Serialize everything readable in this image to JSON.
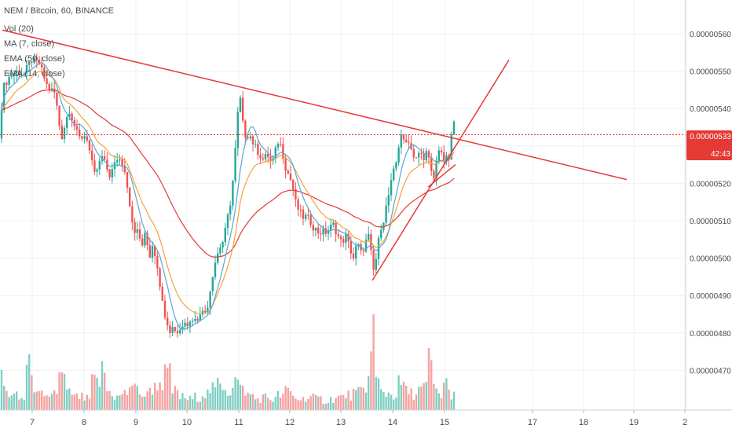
{
  "title_line": "NEM / Bitcoin, 60, BINANCE",
  "indicators": [
    "Vol (20)",
    "MA (7, close)",
    "EMA (50, close)",
    "EMA (14, close)"
  ],
  "price_badge": {
    "value": "0.00000533",
    "countdown": "42:43"
  },
  "colors": {
    "up": "#26a69a",
    "down": "#ef5350",
    "vol_up": "#7fcfc4",
    "vol_down": "#f4a3a1",
    "ma7": "#5aa7d6",
    "ema14": "#f2a33a",
    "ema50": "#e53935",
    "trendline": "#e53935",
    "price_line": "#e53935",
    "grid": "#eef0f3",
    "axis_text": "#4a4a4a"
  },
  "chart_data": {
    "type": "candlestick",
    "x_axis_ticks": [
      "7",
      "8",
      "9",
      "10",
      "11",
      "12",
      "13",
      "14",
      "15",
      "17",
      "18",
      "19",
      "2"
    ],
    "y_axis_ticks": [
      "0.00000560",
      "0.00000550",
      "0.00000540",
      "0.00000530",
      "0.00000520",
      "0.00000510",
      "0.00000500",
      "0.00000490",
      "0.00000480",
      "0.00000470"
    ],
    "ylim": [
      4.62e-06,
      5.72e-06
    ],
    "last_price": 5.33e-06,
    "close_path": [
      [
        0,
        532
      ],
      [
        3,
        545
      ],
      [
        10,
        548
      ],
      [
        20,
        550
      ],
      [
        30,
        549
      ],
      [
        40,
        553
      ],
      [
        50,
        552
      ],
      [
        60,
        546
      ],
      [
        70,
        544
      ],
      [
        78,
        532
      ],
      [
        88,
        540
      ],
      [
        100,
        532
      ],
      [
        110,
        533
      ],
      [
        120,
        522
      ],
      [
        130,
        527
      ],
      [
        140,
        522
      ],
      [
        150,
        527
      ],
      [
        158,
        525
      ],
      [
        165,
        515
      ],
      [
        170,
        506
      ],
      [
        175,
        508
      ],
      [
        180,
        502
      ],
      [
        185,
        508
      ],
      [
        190,
        500
      ],
      [
        195,
        505
      ],
      [
        200,
        497
      ],
      [
        205,
        492
      ],
      [
        210,
        485
      ],
      [
        215,
        480
      ],
      [
        220,
        482
      ],
      [
        225,
        480
      ],
      [
        230,
        481
      ],
      [
        235,
        484
      ],
      [
        240,
        482
      ],
      [
        245,
        484
      ],
      [
        250,
        483
      ],
      [
        255,
        486
      ],
      [
        260,
        485
      ],
      [
        265,
        488
      ],
      [
        270,
        495
      ],
      [
        275,
        500
      ],
      [
        280,
        503
      ],
      [
        285,
        505
      ],
      [
        290,
        511
      ],
      [
        295,
        517
      ],
      [
        300,
        530
      ],
      [
        305,
        545
      ],
      [
        308,
        537
      ],
      [
        312,
        533
      ],
      [
        318,
        533
      ],
      [
        324,
        530
      ],
      [
        330,
        528
      ],
      [
        336,
        526
      ],
      [
        340,
        528
      ],
      [
        346,
        525
      ],
      [
        350,
        528
      ],
      [
        355,
        532
      ],
      [
        360,
        528
      ],
      [
        364,
        524
      ],
      [
        368,
        522
      ],
      [
        372,
        520
      ],
      [
        376,
        515
      ],
      [
        380,
        513
      ],
      [
        385,
        511
      ],
      [
        390,
        511
      ],
      [
        395,
        510
      ],
      [
        400,
        508
      ],
      [
        405,
        507
      ],
      [
        410,
        507
      ],
      [
        415,
        507
      ],
      [
        420,
        508
      ],
      [
        425,
        509
      ],
      [
        430,
        506
      ],
      [
        435,
        504
      ],
      [
        440,
        506
      ],
      [
        445,
        503
      ],
      [
        450,
        500
      ],
      [
        455,
        504
      ],
      [
        460,
        501
      ],
      [
        465,
        504
      ],
      [
        470,
        506
      ],
      [
        475,
        496
      ],
      [
        480,
        501
      ],
      [
        484,
        508
      ],
      [
        488,
        510
      ],
      [
        492,
        514
      ],
      [
        496,
        518
      ],
      [
        500,
        522
      ],
      [
        505,
        526
      ],
      [
        510,
        534
      ],
      [
        515,
        530
      ],
      [
        520,
        532
      ],
      [
        525,
        528
      ],
      [
        530,
        527
      ],
      [
        535,
        528
      ],
      [
        540,
        526
      ],
      [
        545,
        530
      ],
      [
        548,
        524
      ],
      [
        552,
        520
      ],
      [
        556,
        526
      ],
      [
        560,
        530
      ],
      [
        564,
        526
      ],
      [
        568,
        528
      ],
      [
        572,
        525
      ],
      [
        575,
        534
      ],
      [
        579,
        536
      ]
    ],
    "volume_profile": [
      [
        0,
        0.45
      ],
      [
        4,
        0.25
      ],
      [
        12,
        0.18
      ],
      [
        20,
        0.15
      ],
      [
        28,
        0.12
      ],
      [
        36,
        0.55
      ],
      [
        44,
        0.28
      ],
      [
        52,
        0.16
      ],
      [
        60,
        0.12
      ],
      [
        70,
        0.2
      ],
      [
        78,
        0.35
      ],
      [
        88,
        0.18
      ],
      [
        100,
        0.14
      ],
      [
        110,
        0.12
      ],
      [
        122,
        0.3
      ],
      [
        132,
        0.42
      ],
      [
        140,
        0.2
      ],
      [
        148,
        0.14
      ],
      [
        158,
        0.18
      ],
      [
        166,
        0.28
      ],
      [
        174,
        0.22
      ],
      [
        184,
        0.16
      ],
      [
        194,
        0.24
      ],
      [
        204,
        0.3
      ],
      [
        212,
        0.38
      ],
      [
        222,
        0.2
      ],
      [
        232,
        0.14
      ],
      [
        242,
        0.12
      ],
      [
        252,
        0.14
      ],
      [
        262,
        0.18
      ],
      [
        272,
        0.22
      ],
      [
        282,
        0.28
      ],
      [
        292,
        0.2
      ],
      [
        300,
        0.32
      ],
      [
        308,
        0.22
      ],
      [
        318,
        0.16
      ],
      [
        328,
        0.12
      ],
      [
        338,
        0.14
      ],
      [
        348,
        0.12
      ],
      [
        358,
        0.16
      ],
      [
        366,
        0.2
      ],
      [
        374,
        0.14
      ],
      [
        384,
        0.12
      ],
      [
        394,
        0.14
      ],
      [
        404,
        0.12
      ],
      [
        414,
        0.1
      ],
      [
        424,
        0.12
      ],
      [
        434,
        0.14
      ],
      [
        444,
        0.16
      ],
      [
        454,
        0.18
      ],
      [
        462,
        0.2
      ],
      [
        470,
        0.55
      ],
      [
        475,
        1.0
      ],
      [
        480,
        0.3
      ],
      [
        486,
        0.2
      ],
      [
        494,
        0.18
      ],
      [
        502,
        0.16
      ],
      [
        510,
        0.28
      ],
      [
        518,
        0.2
      ],
      [
        526,
        0.18
      ],
      [
        534,
        0.22
      ],
      [
        542,
        0.24
      ],
      [
        548,
        0.55
      ],
      [
        554,
        0.22
      ],
      [
        560,
        0.16
      ],
      [
        566,
        0.3
      ],
      [
        572,
        0.18
      ],
      [
        578,
        0.2
      ]
    ],
    "trendlines": [
      {
        "name": "descending",
        "points": [
          [
            3,
            561
          ],
          [
            798,
            521
          ]
        ]
      },
      {
        "name": "ascending",
        "points": [
          [
            474,
            494
          ],
          [
            648,
            553
          ]
        ]
      },
      {
        "name": "ascending-lower",
        "points": [
          [
            545,
            519
          ],
          [
            580,
            525
          ]
        ]
      }
    ]
  }
}
